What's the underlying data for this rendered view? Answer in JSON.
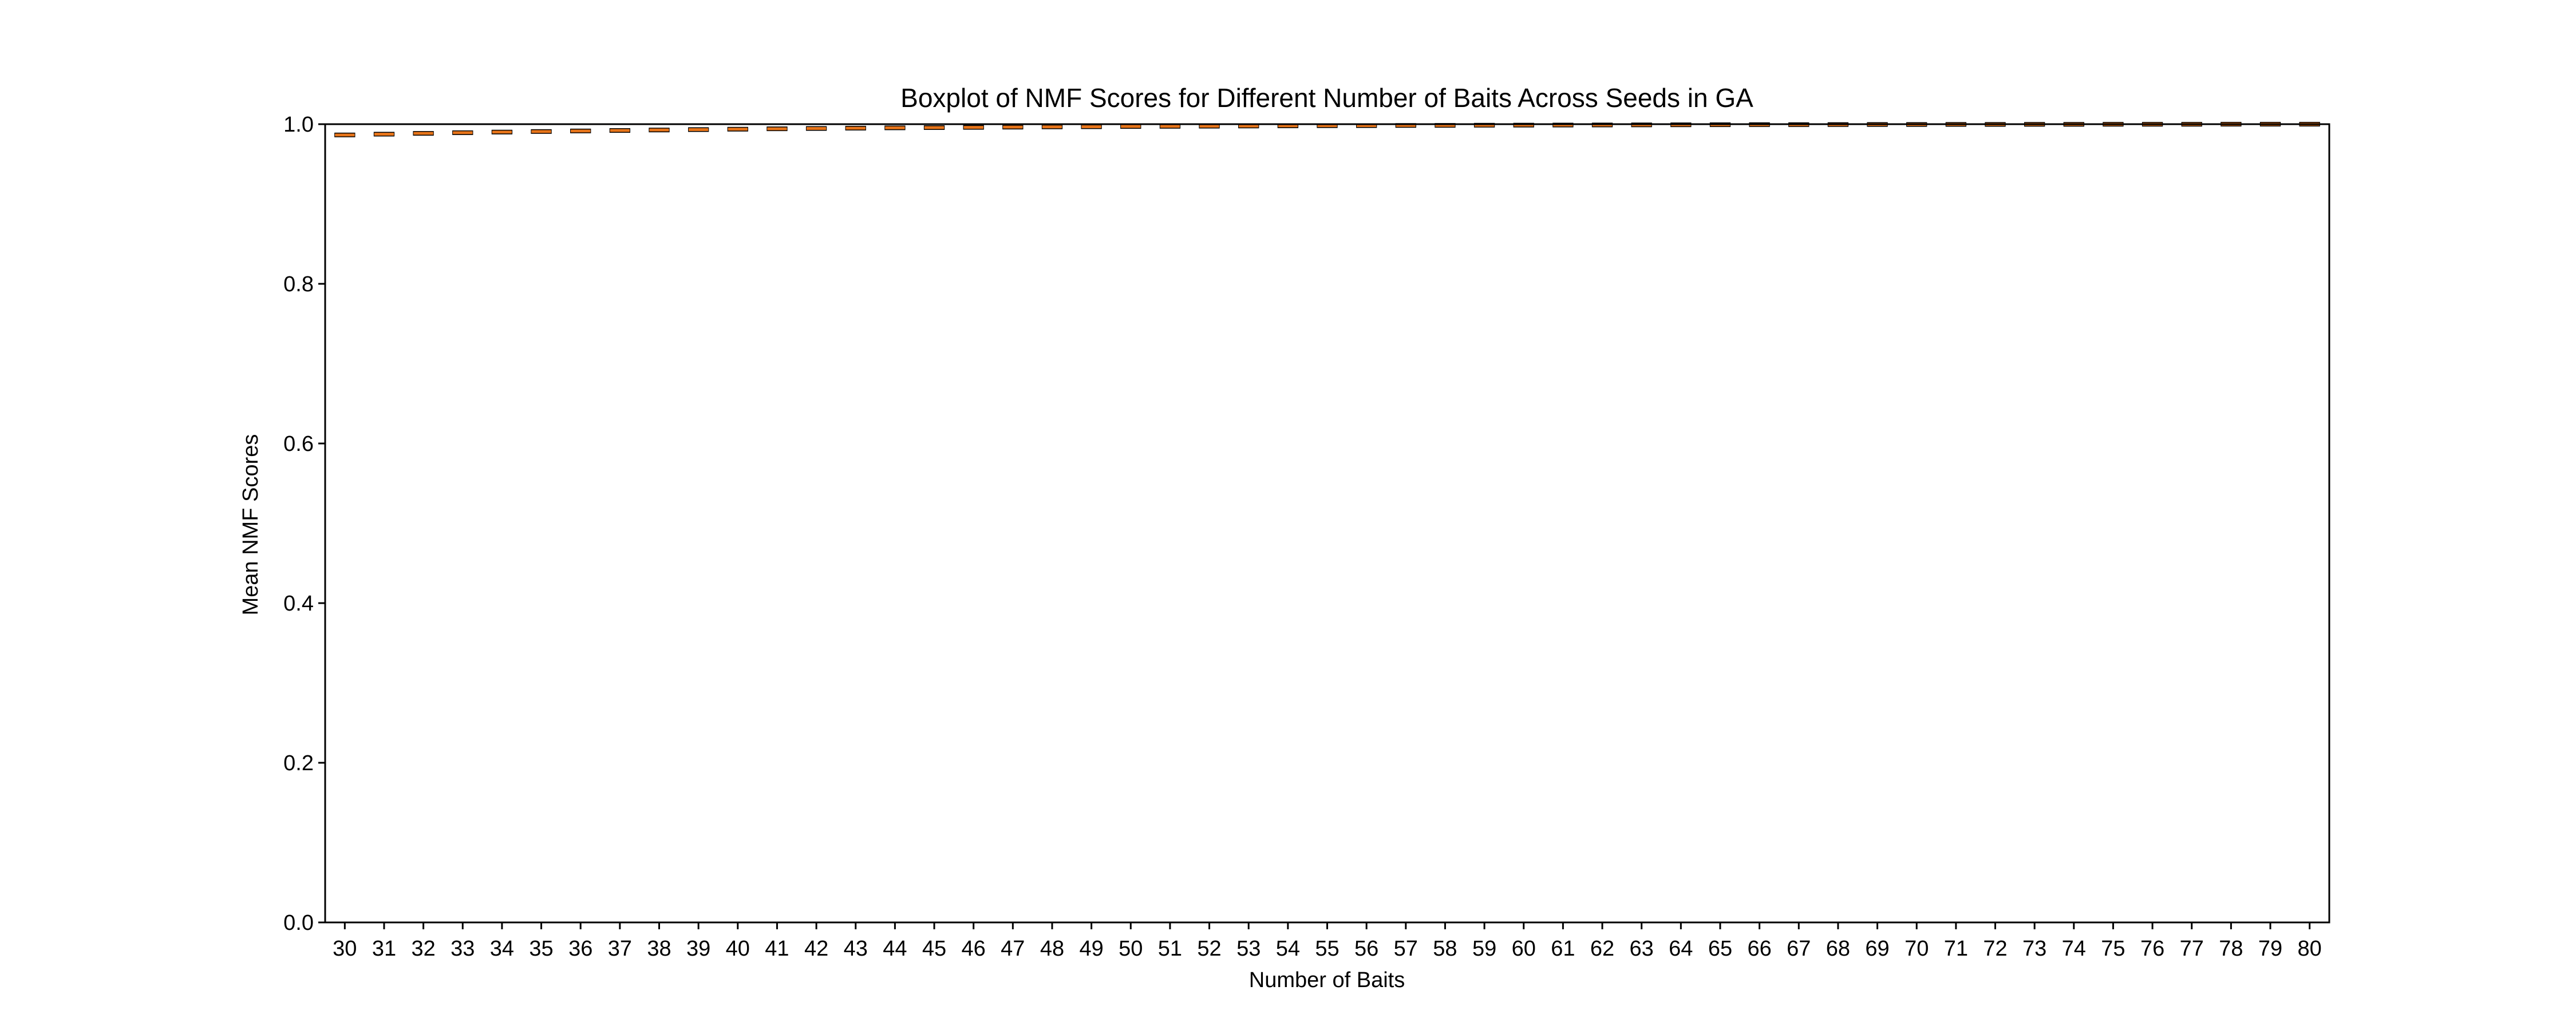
{
  "chart_data": {
    "type": "boxplot",
    "title": "Boxplot of NMF Scores for Different Number of Baits Across Seeds in GA",
    "xlabel": "Number of Baits",
    "ylabel": "Mean NMF Scores",
    "ylim": [
      0.0,
      1.0
    ],
    "yticks": [
      "0.0",
      "0.2",
      "0.4",
      "0.6",
      "0.8",
      "1.0"
    ],
    "categories": [
      "30",
      "31",
      "32",
      "33",
      "34",
      "35",
      "36",
      "37",
      "38",
      "39",
      "40",
      "41",
      "42",
      "43",
      "44",
      "45",
      "46",
      "47",
      "48",
      "49",
      "50",
      "51",
      "52",
      "53",
      "54",
      "55",
      "56",
      "57",
      "58",
      "59",
      "60",
      "61",
      "62",
      "63",
      "64",
      "65",
      "66",
      "67",
      "68",
      "69",
      "70",
      "71",
      "72",
      "73",
      "74",
      "75",
      "76",
      "77",
      "78",
      "79",
      "80"
    ],
    "medians": [
      0.9865,
      0.9875,
      0.9885,
      0.9893,
      0.9901,
      0.9908,
      0.9915,
      0.9921,
      0.9927,
      0.9932,
      0.9937,
      0.9942,
      0.9946,
      0.995,
      0.9954,
      0.9957,
      0.996,
      0.9963,
      0.9966,
      0.9968,
      0.9971,
      0.9973,
      0.9975,
      0.9977,
      0.9979,
      0.9981,
      0.9982,
      0.9984,
      0.9985,
      0.9987,
      0.9988,
      0.9989,
      0.999,
      0.9991,
      0.9992,
      0.9993,
      0.9994,
      0.9994,
      0.9995,
      0.9996,
      0.9996,
      0.9997,
      0.9997,
      0.9998,
      0.9998,
      0.9999,
      0.9999,
      0.9999,
      1.0,
      1.0,
      1.0
    ],
    "grid": false,
    "legend": "none",
    "colors": {
      "median": "#e8751a",
      "box": "#000000",
      "axes": "#000000"
    }
  }
}
